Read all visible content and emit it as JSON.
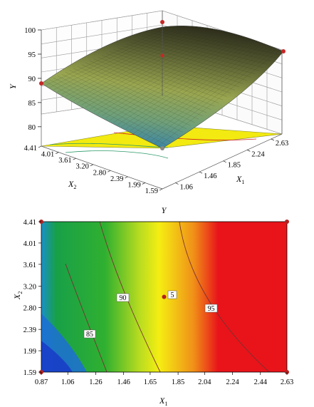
{
  "chart_data": [
    {
      "type": "surface3d",
      "zlabel": "Y",
      "xlabel": "X1",
      "ylabel": "X2",
      "z_ticks": [
        "80",
        "85",
        "90",
        "95",
        "100"
      ],
      "x_ticks": [
        "1.06",
        "1.46",
        "1.85",
        "2.24",
        "2.63"
      ],
      "y_ticks": [
        "4.41",
        "4.01",
        "3.61",
        "3.20",
        "2.80",
        "2.39",
        "1.99",
        "1.59"
      ],
      "zlim": [
        76,
        100
      ],
      "colors": {
        "surface_low": "#2f7fb0",
        "surface_mid": "#8ea14a",
        "surface_high": "#3a3a22",
        "floor": "#f2ea10",
        "design_points": "#c62828"
      }
    },
    {
      "type": "contour",
      "title": "Y",
      "xlabel": "X1",
      "ylabel": "X2",
      "x_ticks": [
        "0.87",
        "1.06",
        "1.26",
        "1.46",
        "1.65",
        "1.85",
        "2.04",
        "2.24",
        "2.44",
        "2.63"
      ],
      "y_ticks": [
        "4.41",
        "4.01",
        "3.61",
        "3.20",
        "2.80",
        "2.39",
        "1.99",
        "1.59"
      ],
      "xlim": [
        0.87,
        2.63
      ],
      "ylim": [
        1.59,
        4.41
      ],
      "contours": [
        {
          "level": 85,
          "label": "85"
        },
        {
          "level": 90,
          "label": "90"
        },
        {
          "level": 95,
          "label": "95"
        }
      ],
      "extra_label": "5",
      "design_points": [
        [
          0.87,
          1.59
        ],
        [
          0.87,
          4.41
        ],
        [
          2.63,
          1.59
        ],
        [
          2.63,
          4.41
        ],
        [
          1.75,
          3.0
        ]
      ],
      "colors": {
        "low": "#1d5fd6",
        "green": "#18a840",
        "yellow": "#f5ee12",
        "orange": "#f09018",
        "red": "#e8141a",
        "point": "#b22222"
      }
    }
  ]
}
